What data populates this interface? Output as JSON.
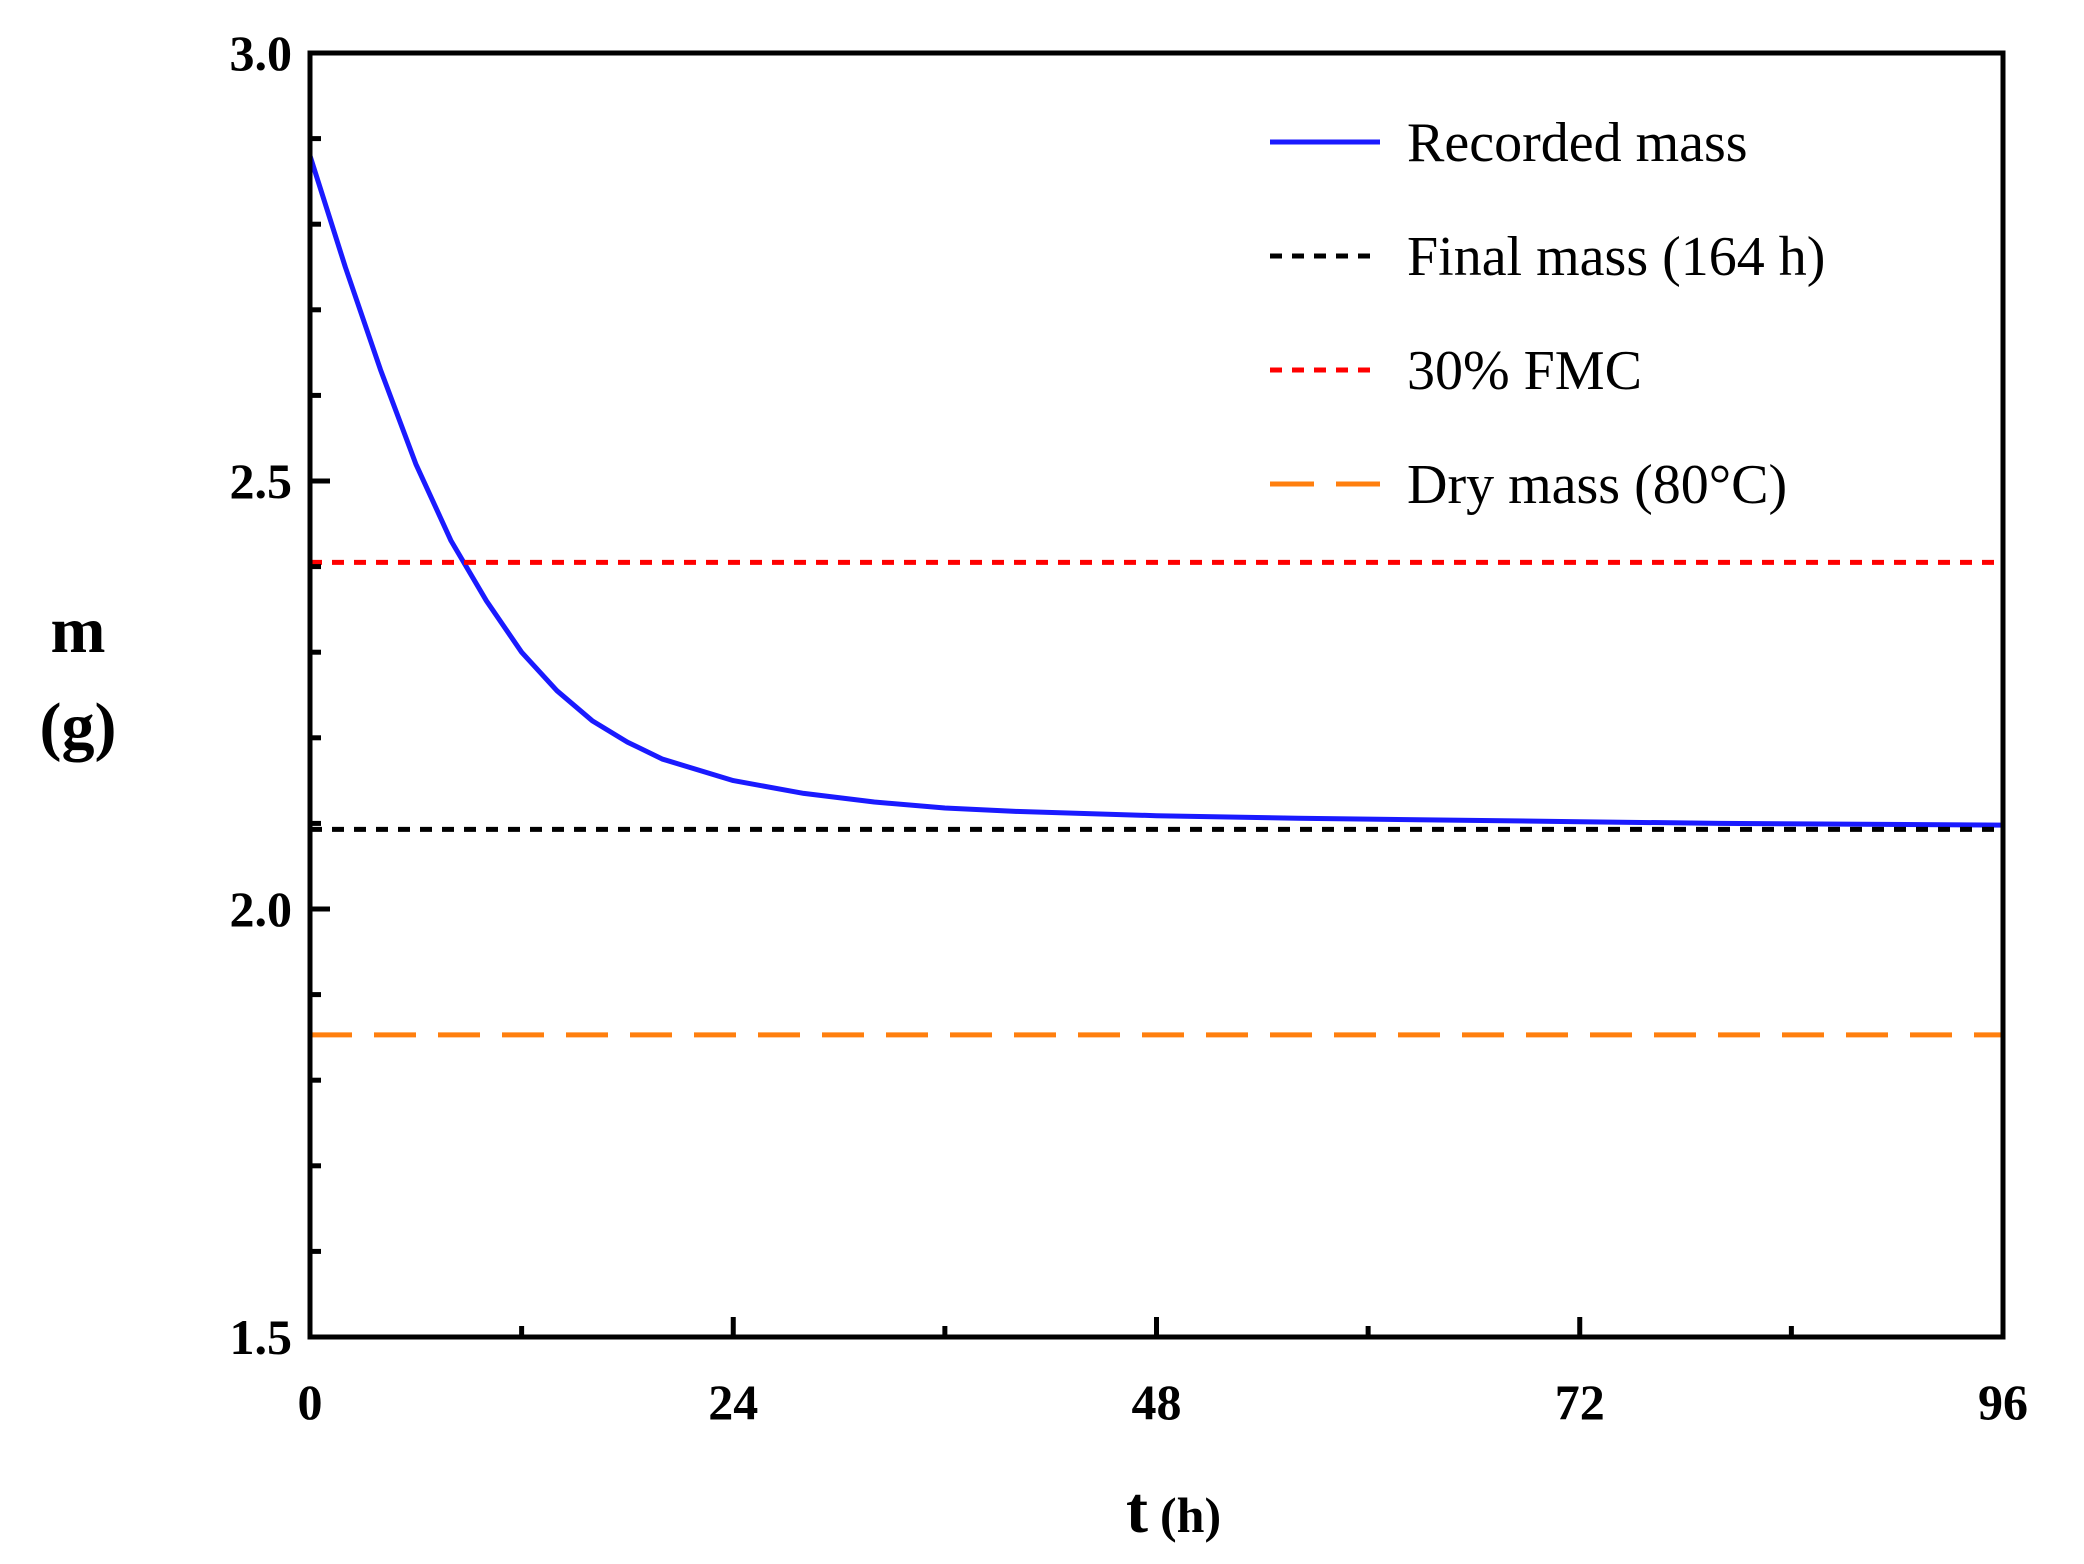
{
  "chart_data": {
    "type": "line",
    "title": "",
    "xlabel_main": "t",
    "xlabel_unit": "(h)",
    "ylabel_main": "m",
    "ylabel_unit": "(g)",
    "xlim": [
      0,
      96
    ],
    "ylim": [
      1.5,
      3.0
    ],
    "x_ticks": [
      0,
      24,
      48,
      72,
      96
    ],
    "x_tick_labels": [
      "0",
      "24",
      "48",
      "72",
      "96"
    ],
    "x_minor_step": 12,
    "y_ticks": [
      1.5,
      2.0,
      2.5,
      3.0
    ],
    "y_tick_labels": [
      "1.5",
      "2.0",
      "2.5",
      "3.0"
    ],
    "y_minor_step": 0.1,
    "legend_position": "top-right",
    "series": [
      {
        "name": "Recorded mass",
        "kind": "curve",
        "color": "#1a1aff",
        "style": "solid",
        "x": [
          0,
          2,
          4,
          6,
          8,
          10,
          12,
          14,
          16,
          18,
          20,
          24,
          28,
          32,
          36,
          40,
          48,
          56,
          64,
          72,
          80,
          88,
          96
        ],
        "values": [
          2.88,
          2.75,
          2.63,
          2.52,
          2.43,
          2.36,
          2.3,
          2.255,
          2.22,
          2.195,
          2.175,
          2.15,
          2.135,
          2.125,
          2.118,
          2.114,
          2.109,
          2.106,
          2.104,
          2.102,
          2.1,
          2.099,
          2.098
        ]
      },
      {
        "name": "Final mass (164 h)",
        "kind": "hline",
        "value": 2.093,
        "color": "#000000",
        "style": "dotted"
      },
      {
        "name": "30% FMC",
        "kind": "hline",
        "value": 2.405,
        "color": "#ff0000",
        "style": "dotted"
      },
      {
        "name": "Dry mass (80°C)",
        "kind": "hline",
        "value": 1.853,
        "color": "#ff7f0e",
        "style": "dashed"
      }
    ]
  }
}
